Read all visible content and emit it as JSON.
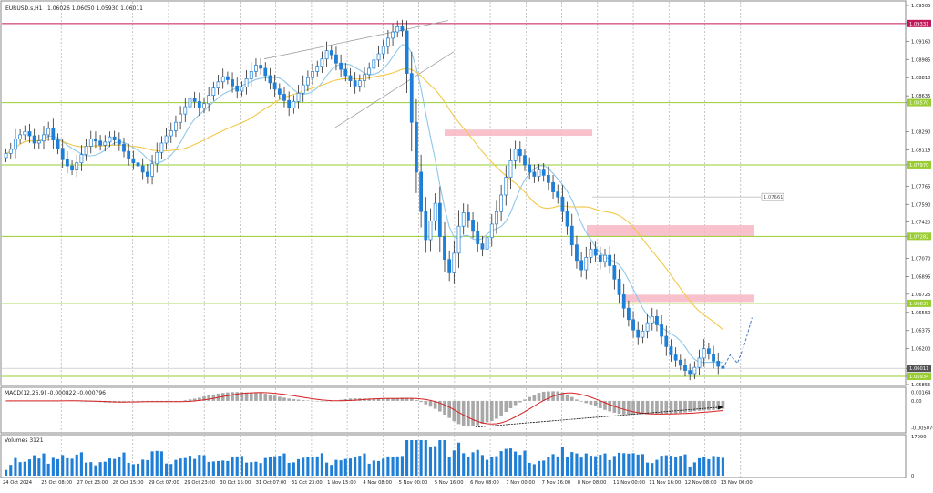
{
  "window": {
    "symbol_caption": "EURUSD.s,H1",
    "ohlc_caption": "1.06026 1.06050 1.05930 1.06011"
  },
  "colors": {
    "bull_candle": "#1f7fd6",
    "bear_candle": "#1f7fd6",
    "wick": "#2a2a2a",
    "ma_fast": "#8fc7ea",
    "ma_slow": "#f2c84a",
    "level_line": "#9acd32",
    "resistance_line": "#c2185b",
    "zone_fill": "#f7b6c2",
    "macd_signal": "#d62020",
    "macd_hist": "#a8a8a8",
    "volume_bar": "#1f7fd6",
    "grid": "#b0b0b0",
    "channel": "#a0a0a0",
    "price_badge": "#9acd32",
    "resistance_badge": "#c2185b",
    "current_badge": "#555555"
  },
  "chart_data": [
    {
      "type": "candlestick",
      "panel": "price",
      "symbol": "EURUSD.s",
      "timeframe": "H1",
      "y_ticks": [
        "1.09505",
        "1.09331",
        "1.09160",
        "1.08985",
        "1.08810",
        "1.08635",
        "1.08570",
        "1.08290",
        "1.08115",
        "1.07970",
        "1.07765",
        "1.07590",
        "1.07420",
        "1.07282",
        "1.07070",
        "1.06895",
        "1.06725",
        "1.06637",
        "1.06550",
        "1.06375",
        "1.06200",
        "1.06011",
        "1.05934",
        "1.05855"
      ],
      "ylim": [
        1.05855,
        1.09505
      ],
      "x_tick_labels": [
        "24 Oct 2024",
        "25 Oct 08:00",
        "27 Oct 23:00",
        "28 Oct 15:00",
        "29 Oct 07:00",
        "29 Oct 23:00",
        "30 Oct 15:00",
        "31 Oct 07:00",
        "31 Oct 23:00",
        "1 Nov 15:00",
        "4 Nov 08:00",
        "5 Nov 00:00",
        "5 Nov 16:00",
        "6 Nov 08:00",
        "7 Nov 00:00",
        "7 Nov 16:00",
        "8 Nov 08:00",
        "11 Nov 00:00",
        "11 Nov 16:00",
        "12 Nov 08:00",
        "13 Nov 00:00"
      ],
      "close_series": [
        1.0808,
        1.0812,
        1.0822,
        1.0826,
        1.0829,
        1.0825,
        1.0818,
        1.082,
        1.0826,
        1.0832,
        1.0821,
        1.0813,
        1.0802,
        1.0796,
        1.0792,
        1.0799,
        1.0807,
        1.0815,
        1.0822,
        1.082,
        1.0816,
        1.0819,
        1.0824,
        1.0821,
        1.0817,
        1.081,
        1.0803,
        1.0799,
        1.0796,
        1.079,
        1.0786,
        1.0798,
        1.0809,
        1.0818,
        1.0825,
        1.083,
        1.0838,
        1.0846,
        1.0853,
        1.0861,
        1.0858,
        1.0852,
        1.0856,
        1.0864,
        1.0871,
        1.0877,
        1.0882,
        1.0879,
        1.0873,
        1.0868,
        1.0872,
        1.088,
        1.0887,
        1.0893,
        1.089,
        1.0883,
        1.0876,
        1.087,
        1.0865,
        1.0859,
        1.0852,
        1.0858,
        1.0866,
        1.0874,
        1.0881,
        1.0887,
        1.0892,
        1.0899,
        1.0907,
        1.0903,
        1.0895,
        1.0889,
        1.0883,
        1.0878,
        1.0873,
        1.0878,
        1.0884,
        1.089,
        1.0898,
        1.0904,
        1.0911,
        1.0919,
        1.0925,
        1.093,
        1.0926,
        1.0885,
        1.0838,
        1.079,
        1.0752,
        1.0725,
        1.0743,
        1.076,
        1.0728,
        1.0706,
        1.0693,
        1.0712,
        1.0738,
        1.0751,
        1.0744,
        1.0733,
        1.0721,
        1.0716,
        1.0727,
        1.074,
        1.0752,
        1.0768,
        1.0785,
        1.0801,
        1.0812,
        1.0806,
        1.0797,
        1.079,
        1.0786,
        1.0792,
        1.0787,
        1.078,
        1.0771,
        1.0766,
        1.0752,
        1.0738,
        1.072,
        1.0705,
        1.0696,
        1.0708,
        1.0716,
        1.071,
        1.0704,
        1.071,
        1.07,
        1.0687,
        1.0672,
        1.0659,
        1.0648,
        1.0638,
        1.0631,
        1.0637,
        1.0645,
        1.0651,
        1.0643,
        1.0632,
        1.0622,
        1.0614,
        1.0609,
        1.0604,
        1.0599,
        1.0596,
        1.0602,
        1.0611,
        1.062,
        1.0615,
        1.0608,
        1.0603,
        1.0601
      ],
      "projection": [
        1.0601,
        1.0614,
        1.0606,
        1.0625,
        1.065
      ],
      "moving_averages": [
        {
          "role": "fast",
          "color_key": "ma_fast"
        },
        {
          "role": "slow",
          "color_key": "ma_slow"
        }
      ],
      "horizontal_levels": [
        {
          "price": 1.09331,
          "label": "1.09331",
          "kind": "resistance"
        },
        {
          "price": 1.0857,
          "label": "1.08570",
          "kind": "level"
        },
        {
          "price": 1.0797,
          "label": "1.07970",
          "kind": "level"
        },
        {
          "price": 1.07282,
          "label": "1.07282",
          "kind": "level"
        },
        {
          "price": 1.06637,
          "label": "1.06637",
          "kind": "level"
        },
        {
          "price": 1.05934,
          "label": "1.05934",
          "kind": "level"
        }
      ],
      "current_price": {
        "price": 1.06011,
        "label": "1.06011"
      },
      "zones": [
        {
          "from": 1.0825,
          "to": 1.0831
        },
        {
          "from": 1.0728,
          "to": 1.0739
        },
        {
          "from": 1.0665,
          "to": 1.0672
        }
      ],
      "price_marker": {
        "price": 1.07661,
        "label": "1.07661"
      }
    },
    {
      "type": "bar",
      "panel": "macd",
      "caption": "MACD(12,26,9) -0.000822 -0.000796",
      "y_ticks": [
        "0.00164",
        "0.00",
        "-0.005076"
      ],
      "ylim": [
        -0.0058,
        0.0022
      ]
    },
    {
      "type": "bar",
      "panel": "volume",
      "caption": "Volumes 3121",
      "y_ticks": [
        "17090",
        "0"
      ],
      "ylim": [
        0,
        17090
      ]
    }
  ]
}
